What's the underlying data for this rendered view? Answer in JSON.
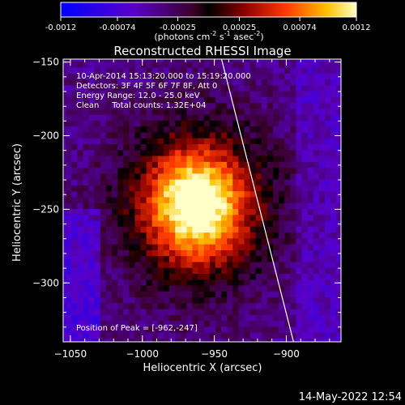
{
  "colorbar": {
    "ticks": [
      "-0.0012",
      "-0.00074",
      "-0.00025",
      "0.00025",
      "0.00074",
      "0.0012"
    ],
    "units_main": "(photons cm",
    "units_sup1": "-2",
    "units_mid1": " s",
    "units_sup2": "-1",
    "units_mid2": " asec",
    "units_sup3": "-2",
    "units_end": ")"
  },
  "chart_data": {
    "type": "heatmap",
    "title": "Reconstructed RHESSI Image",
    "xlabel": "Heliocentric X (arcsec)",
    "ylabel": "Heliocentric Y (arcsec)",
    "xlim": [
      -1055,
      -862
    ],
    "ylim": [
      -340,
      -148
    ],
    "x_ticks": [
      -1050,
      -1000,
      -950,
      -900
    ],
    "y_ticks": [
      -150,
      -200,
      -250,
      -300
    ],
    "x_tick_labels": [
      "−1050",
      "−1000",
      "−950",
      "−900"
    ],
    "y_tick_labels": [
      "−150",
      "−200",
      "−250",
      "−300"
    ],
    "colorbar_range": [
      -0.0012,
      0.0012
    ],
    "peak_position": [
      -962,
      -247
    ],
    "limb_line": [
      [
        -945,
        -148
      ],
      [
        -895,
        -340
      ]
    ],
    "annotations": [
      "10-Apr-2014 15:13:20.000 to 15:19:20.000",
      "Detectors: 3F 4F 5F 6F 7F 8F, Att 0",
      "Energy Range: 12.0 - 25.0 keV",
      "Clean     Total counts: 1.32E+04"
    ],
    "peak_label": "Position of Peak = [-962,-247]"
  },
  "timestamp": "14-May-2022 12:54"
}
